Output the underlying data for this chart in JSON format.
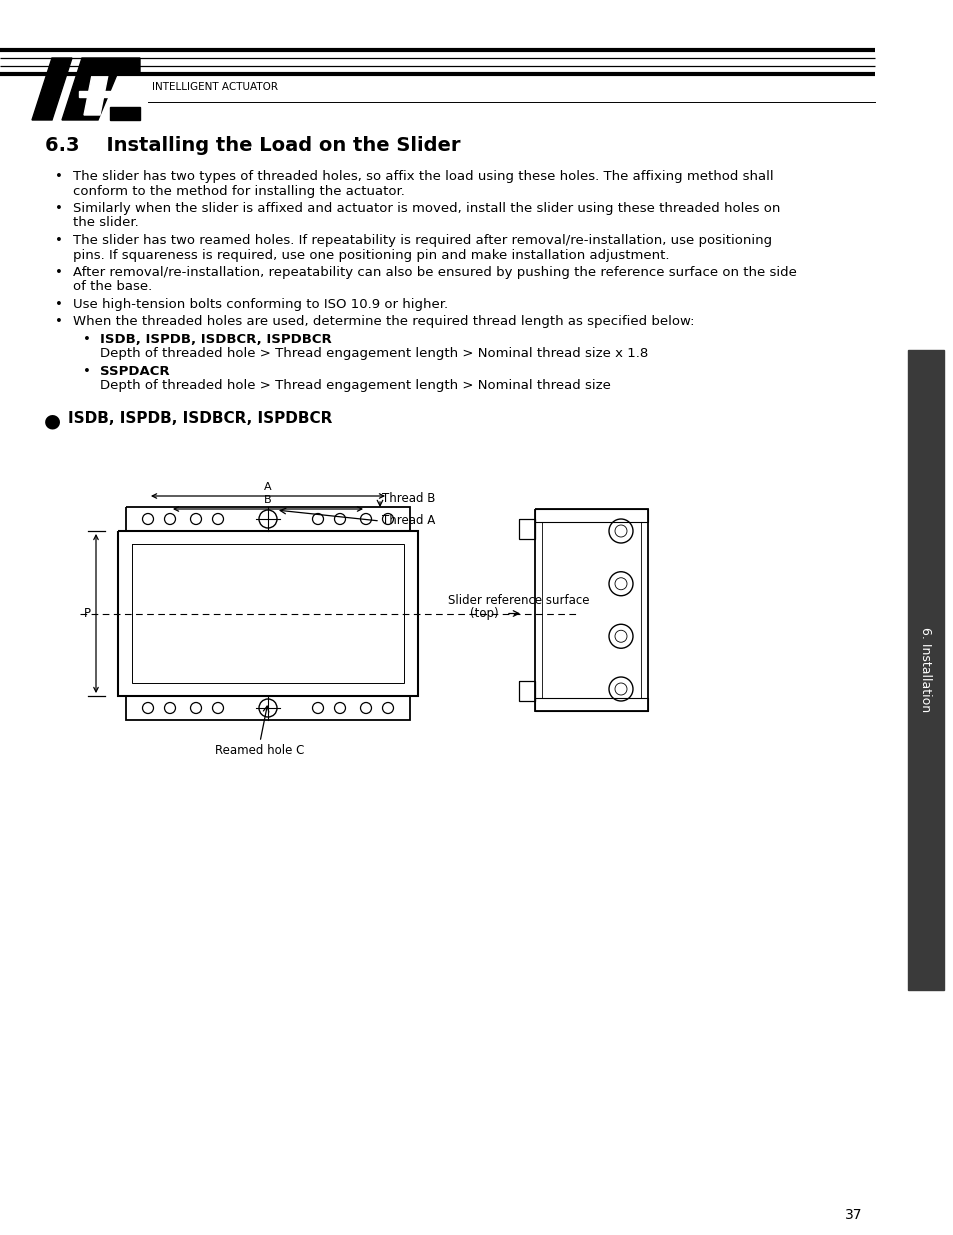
{
  "bg_color": "#ffffff",
  "page_number": "37",
  "section_title": "6.3    Installing the Load on the Slider",
  "logo_text": "INTELLIGENT ACTUATOR",
  "sidebar_text": "6. Installation",
  "bullet1a": "The slider has two types of threaded holes, so affix the load using these holes. The affixing method shall",
  "bullet1b": "conform to the method for installing the actuator.",
  "bullet2a": "Similarly when the slider is affixed and actuator is moved, install the slider using these threaded holes on",
  "bullet2b": "the slider.",
  "bullet3a": "The slider has two reamed holes. If repeatability is required after removal/re-installation, use positioning",
  "bullet3b": "pins. If squareness is required, use one positioning pin and make installation adjustment.",
  "bullet4a": "After removal/re-installation, repeatability can also be ensured by pushing the reference surface on the side",
  "bullet4b": "of the base.",
  "bullet5": "Use high-tension bolts conforming to ISO 10.9 or higher.",
  "bullet6": "When the threaded holes are used, determine the required thread length as specified below:",
  "sub1_title": "ISDB, ISPDB, ISDBCR, ISPDBCR",
  "sub1_body": "Depth of threaded hole > Thread engagement length > Nominal thread size x 1.8",
  "sub2_title": "SSPDACR",
  "sub2_body": "Depth of threaded hole > Thread engagement length > Nominal thread size",
  "big_bullet": "ISDB, ISPDB, ISDBCR, ISPDBCR",
  "label_thread_b": "Thread B",
  "label_thread_a": "Thread A",
  "label_p": "P",
  "label_a": "A",
  "label_b": "B",
  "label_reamed": "Reamed hole C",
  "label_slider_ref": "Slider reference surface",
  "label_top": "(top)"
}
